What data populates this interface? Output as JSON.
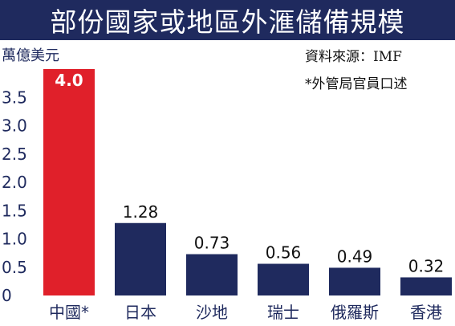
{
  "chart_data": {
    "type": "bar",
    "title": "部份國家或地區外滙儲備規模",
    "ylabel": "萬億美元",
    "source": "資料來源：IMF",
    "note": "*外管局官員口述",
    "categories": [
      "中國*",
      "日本",
      "沙地",
      "瑞士",
      "俄羅斯",
      "香港"
    ],
    "values": [
      4.0,
      1.28,
      0.73,
      0.56,
      0.49,
      0.32
    ],
    "value_labels": [
      "4.0",
      "1.28",
      "0.73",
      "0.56",
      "0.49",
      "0.32"
    ],
    "ylim": [
      0,
      4.0
    ],
    "yticks": [
      "0",
      "0.5",
      "1.0",
      "1.5",
      "2.0",
      "2.5",
      "3.0",
      "3.5"
    ],
    "ytick_values": [
      0,
      0.5,
      1.0,
      1.5,
      2.0,
      2.5,
      3.0,
      3.5
    ],
    "grid": false,
    "colors": {
      "highlight": "#e0202a",
      "bar": "#1f2a5e",
      "header": "#1f2a5e"
    }
  }
}
